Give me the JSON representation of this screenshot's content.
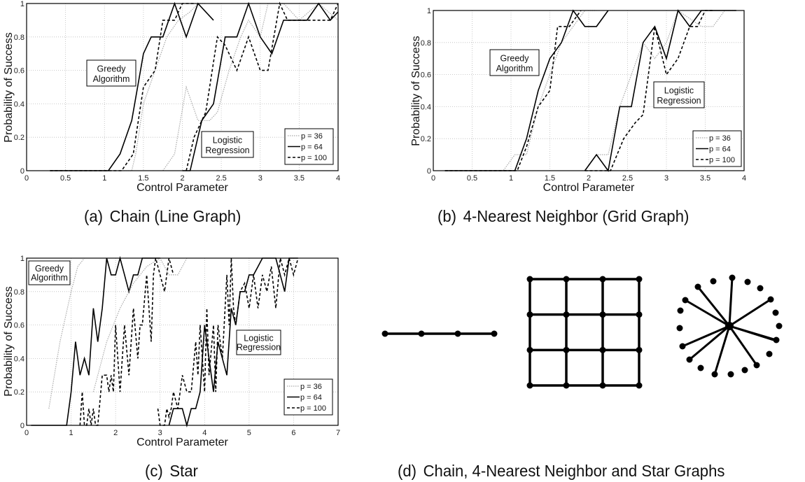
{
  "captions": {
    "a": {
      "label": "(a)",
      "text": "Chain (Line Graph)"
    },
    "b": {
      "label": "(b)",
      "text": "4-Nearest Neighbor (Grid Graph)"
    },
    "c": {
      "label": "(c)",
      "text": "Star"
    },
    "d": {
      "label": "(d)",
      "text": "Chain, 4-Nearest Neighbor and Star Graphs"
    }
  },
  "legend": {
    "p36": "p = 36",
    "p64": "p = 64",
    "p100": "p = 100"
  },
  "annotations": {
    "greedy_line1": "Greedy",
    "greedy_line2": "Algorithm",
    "logistic_line1": "Logistic",
    "logistic_line2": "Regression"
  },
  "axes": {
    "xlabel": "Control Parameter",
    "ylabel": "Probability of Success"
  },
  "chart_data": [
    {
      "id": "a",
      "type": "line",
      "title": "(a) Chain (Line Graph)",
      "xlabel": "Control Parameter",
      "ylabel": "Probability of Success",
      "xlim": [
        0,
        4
      ],
      "ylim": [
        0,
        1
      ],
      "xticks": [
        0,
        0.5,
        1,
        1.5,
        2,
        2.5,
        3,
        3.5,
        4
      ],
      "yticks": [
        0,
        0.2,
        0.4,
        0.6,
        0.8,
        1
      ],
      "grid": true,
      "legend_position": "lower right",
      "annotations": [
        {
          "text": "Greedy Algorithm",
          "x": 0.73,
          "y": 0.58
        },
        {
          "text": "Logistic Regression",
          "x": 2.56,
          "y": 0.17
        }
      ],
      "series": [
        {
          "name": "p = 36",
          "group": "Greedy Algorithm",
          "style": "dotted",
          "x": [
            0.3,
            1.35,
            1.4,
            1.5,
            1.65,
            1.8,
            1.95,
            2.1,
            2.2,
            2.3
          ],
          "y": [
            0,
            0,
            0.1,
            0.4,
            0.6,
            0.8,
            0.9,
            0.95,
            1,
            1
          ]
        },
        {
          "name": "p = 64",
          "group": "Greedy Algorithm",
          "style": "solid",
          "x": [
            0.3,
            1.05,
            1.2,
            1.35,
            1.5,
            1.6,
            1.75,
            1.9,
            2.05,
            2.2,
            2.4
          ],
          "y": [
            0,
            0,
            0.1,
            0.3,
            0.7,
            0.8,
            0.8,
            1,
            0.8,
            1,
            0.9
          ]
        },
        {
          "name": "p = 100",
          "group": "Greedy Algorithm",
          "style": "dashed",
          "x": [
            0.3,
            1.22,
            1.37,
            1.5,
            1.65,
            1.75,
            1.9,
            2.0,
            2.15
          ],
          "y": [
            0,
            0,
            0.1,
            0.5,
            0.6,
            0.9,
            0.9,
            1,
            1
          ]
        },
        {
          "name": "p = 36",
          "group": "Logistic Regression",
          "style": "dotted",
          "x": [
            1.75,
            1.9,
            2.05,
            2.2,
            2.35,
            2.45,
            2.6,
            2.75,
            2.85,
            3.0,
            3.1,
            3.3,
            3.5,
            3.75,
            4.0
          ],
          "y": [
            0,
            0.1,
            0.5,
            0.3,
            0.3,
            0.35,
            0.6,
            0.8,
            0.9,
            0.8,
            1,
            1,
            0.9,
            1,
            0.9
          ]
        },
        {
          "name": "p = 64",
          "group": "Logistic Regression",
          "style": "solid",
          "x": [
            2.0,
            2.1,
            2.25,
            2.4,
            2.55,
            2.7,
            2.85,
            3.0,
            3.15,
            3.3,
            3.5,
            3.6,
            3.75,
            3.9,
            4.0
          ],
          "y": [
            0,
            0,
            0.3,
            0.4,
            0.8,
            0.8,
            1,
            0.8,
            0.7,
            0.9,
            0.9,
            0.9,
            1,
            0.9,
            0.95
          ]
        },
        {
          "name": "p = 100",
          "group": "Logistic Regression",
          "style": "dashed",
          "x": [
            2.05,
            2.15,
            2.3,
            2.45,
            2.55,
            2.7,
            2.85,
            3.0,
            3.1,
            3.25,
            3.35,
            3.5,
            3.65,
            3.75,
            3.9,
            4.0
          ],
          "y": [
            0,
            0.2,
            0.35,
            0.8,
            0.75,
            0.6,
            0.8,
            0.6,
            0.6,
            1,
            0.9,
            0.9,
            0.9,
            0.9,
            0.9,
            1
          ]
        }
      ]
    },
    {
      "id": "b",
      "type": "line",
      "title": "(b) 4-Nearest Neighbor (Grid Graph)",
      "xlabel": "Control Parameter",
      "ylabel": "Probability of Success",
      "xlim": [
        0,
        4
      ],
      "ylim": [
        0,
        1
      ],
      "xticks": [
        0,
        0.5,
        1,
        1.5,
        2,
        2.5,
        3,
        3.5,
        4
      ],
      "yticks": [
        0,
        0.2,
        0.4,
        0.6,
        0.8,
        1
      ],
      "grid": true,
      "legend_position": "lower right",
      "annotations": [
        {
          "text": "Greedy Algorithm",
          "x": 0.77,
          "y": 0.67
        },
        {
          "text": "Logistic Regression",
          "x": 2.85,
          "y": 0.47
        }
      ],
      "series": [
        {
          "name": "p = 36",
          "group": "Greedy Algorithm",
          "style": "dotted",
          "x": [
            0.15,
            0.9,
            1.05,
            1.2,
            1.35,
            1.5,
            1.65,
            1.8,
            1.95,
            2.1
          ],
          "y": [
            0,
            0,
            0.1,
            0.1,
            0.4,
            0.6,
            0.8,
            0.9,
            1,
            1
          ]
        },
        {
          "name": "p = 64",
          "group": "Greedy Algorithm",
          "style": "solid",
          "x": [
            0.15,
            1.05,
            1.2,
            1.35,
            1.5,
            1.65,
            1.8,
            1.95,
            2.1,
            2.25
          ],
          "y": [
            0,
            0,
            0.2,
            0.5,
            0.7,
            0.8,
            1,
            0.9,
            0.9,
            1
          ]
        },
        {
          "name": "p = 100",
          "group": "Greedy Algorithm",
          "style": "dashed",
          "x": [
            0.15,
            1.08,
            1.2,
            1.35,
            1.5,
            1.6,
            1.75,
            1.9
          ],
          "y": [
            0,
            0,
            0.15,
            0.4,
            0.5,
            0.9,
            0.9,
            1
          ]
        },
        {
          "name": "p = 36",
          "group": "Logistic Regression",
          "style": "dotted",
          "x": [
            1.95,
            2.1,
            2.25,
            2.4,
            2.55,
            2.7,
            2.85,
            3.0,
            3.15,
            3.3,
            3.45,
            3.6,
            3.75,
            3.9
          ],
          "y": [
            0,
            0.1,
            0.1,
            0.4,
            0.6,
            0.8,
            0.7,
            0.8,
            1,
            0.95,
            0.9,
            0.9,
            1,
            1
          ]
        },
        {
          "name": "p = 64",
          "group": "Logistic Regression",
          "style": "solid",
          "x": [
            1.95,
            2.1,
            2.25,
            2.4,
            2.55,
            2.7,
            2.85,
            3.0,
            3.15,
            3.3,
            3.45,
            3.6,
            3.75,
            3.9
          ],
          "y": [
            0,
            0.1,
            0,
            0.4,
            0.4,
            0.8,
            0.9,
            0.7,
            1,
            0.9,
            1,
            1,
            1,
            1
          ]
        },
        {
          "name": "p = 100",
          "group": "Logistic Regression",
          "style": "dashed",
          "x": [
            1.95,
            2.28,
            2.45,
            2.6,
            2.7,
            2.85,
            3.0,
            3.15,
            3.3,
            3.4,
            3.5,
            3.6
          ],
          "y": [
            0,
            0,
            0.2,
            0.3,
            0.35,
            0.9,
            0.6,
            0.7,
            0.9,
            0.9,
            1,
            1
          ]
        }
      ]
    },
    {
      "id": "c",
      "type": "line",
      "title": "(c) Star",
      "xlabel": "Control Parameter",
      "ylabel": "Probability of Success",
      "xlim": [
        0,
        7
      ],
      "ylim": [
        0,
        1
      ],
      "xticks": [
        0,
        1,
        2,
        3,
        4,
        5,
        6,
        7
      ],
      "yticks": [
        0,
        0.2,
        0.4,
        0.6,
        0.8,
        1
      ],
      "grid": true,
      "legend_position": "lower right",
      "annotations": [
        {
          "text": "Greedy Algorithm",
          "x": 0.5,
          "y": 0.91
        },
        {
          "text": "Logistic Regression",
          "x": 5.2,
          "y": 0.5
        }
      ],
      "series": [
        {
          "name": "p = 36",
          "group": "Greedy Algorithm",
          "style": "dotted",
          "x": [
            0.5,
            0.75,
            1.0,
            1.15,
            1.3
          ],
          "y": [
            0.1,
            0.5,
            0.8,
            0.95,
            1
          ]
        },
        {
          "name": "p = 64",
          "group": "Greedy Algorithm",
          "style": "solid",
          "x": [
            0.1,
            0.9,
            1.0,
            1.1,
            1.2,
            1.3,
            1.4,
            1.5,
            1.6,
            1.7,
            1.8,
            1.9,
            2.0,
            2.1,
            2.2,
            2.3,
            2.4,
            2.5,
            2.6,
            2.8,
            3.0
          ],
          "y": [
            0,
            0,
            0.2,
            0.5,
            0.3,
            0.4,
            0.3,
            0.7,
            0.5,
            0.7,
            1,
            0.9,
            0.9,
            1,
            0.9,
            0.8,
            0.9,
            0.9,
            1,
            1,
            1
          ]
        },
        {
          "name": "p = 100",
          "group": "Greedy Algorithm",
          "style": "dashed",
          "x": [
            1.2,
            1.25,
            1.3,
            1.35,
            1.4,
            1.45,
            1.5,
            1.55,
            1.6,
            1.7,
            1.8,
            1.85,
            1.9,
            1.95,
            2.0,
            2.1,
            2.2,
            2.3,
            2.4,
            2.5,
            2.55,
            2.6,
            2.7,
            2.8,
            2.85,
            2.9,
            3.0,
            3.1,
            3.2,
            3.3
          ],
          "y": [
            0,
            0.2,
            0,
            0,
            0.1,
            0,
            0.1,
            0,
            0,
            0.3,
            0.3,
            0.2,
            0.3,
            0.2,
            0.6,
            0.2,
            0.6,
            0.3,
            0.7,
            0.4,
            0.6,
            0.6,
            0.9,
            0.5,
            0.9,
            1,
            0.9,
            0.8,
            1,
            0.9
          ]
        },
        {
          "name": "p = 36",
          "group": "Logistic Regression",
          "style": "dotted",
          "x": [
            1.5,
            1.8,
            2.1,
            2.4,
            2.7,
            3.0,
            3.2,
            3.4,
            3.6
          ],
          "y": [
            0.2,
            0.5,
            0.7,
            0.85,
            0.95,
            1,
            0.9,
            0.9,
            1
          ]
        },
        {
          "name": "p = 64",
          "group": "Logistic Regression",
          "style": "solid",
          "x": [
            3.2,
            3.3,
            3.4,
            3.5,
            3.6,
            3.7,
            3.8,
            3.9,
            4.0,
            4.1,
            4.2,
            4.3,
            4.4,
            4.5,
            4.6,
            4.7,
            4.8,
            4.9,
            5.0,
            5.1,
            5.2,
            5.3,
            5.6,
            5.8,
            5.9,
            6.0,
            6.1
          ],
          "y": [
            0,
            0.1,
            0.1,
            0.1,
            0,
            0.1,
            0.1,
            0.2,
            0.6,
            0.4,
            0.2,
            0.5,
            0.4,
            0.3,
            0.7,
            0.6,
            0.8,
            0.8,
            0.9,
            0.9,
            0.95,
            1,
            1,
            0.8,
            1,
            1,
            1
          ]
        },
        {
          "name": "p = 100",
          "group": "Logistic Regression",
          "style": "dashed",
          "x": [
            2.95,
            3.0,
            3.1,
            3.15,
            3.2,
            3.25,
            3.3,
            3.4,
            3.5,
            3.6,
            3.7,
            3.8,
            3.85,
            3.9,
            4.0,
            4.05,
            4.1,
            4.2,
            4.25,
            4.3,
            4.4,
            4.5,
            4.55,
            4.6,
            4.65,
            4.7,
            4.8,
            4.9,
            5.0,
            5.1,
            5.2,
            5.3,
            5.4,
            5.5,
            5.6,
            5.7,
            5.8,
            5.9,
            6.0,
            6.1
          ],
          "y": [
            0.1,
            0,
            0,
            0.1,
            0.05,
            0.1,
            0.2,
            0.1,
            0.3,
            0.2,
            0.2,
            0.5,
            0.3,
            0.6,
            0.2,
            0.7,
            0.3,
            0.6,
            0.2,
            0.6,
            0.4,
            0.9,
            0.6,
            1,
            0.7,
            0.6,
            0.8,
            0.85,
            0.7,
            0.9,
            0.7,
            0.9,
            0.8,
            0.95,
            0.7,
            1,
            0.9,
            1,
            0.9,
            1
          ]
        }
      ]
    }
  ],
  "graph_illustrations": {
    "chain": {
      "nodes": 4
    },
    "grid": {
      "rows": 4,
      "cols": 4
    },
    "star": {
      "connected_leaves": 11,
      "isolated_nodes": 13
    }
  }
}
